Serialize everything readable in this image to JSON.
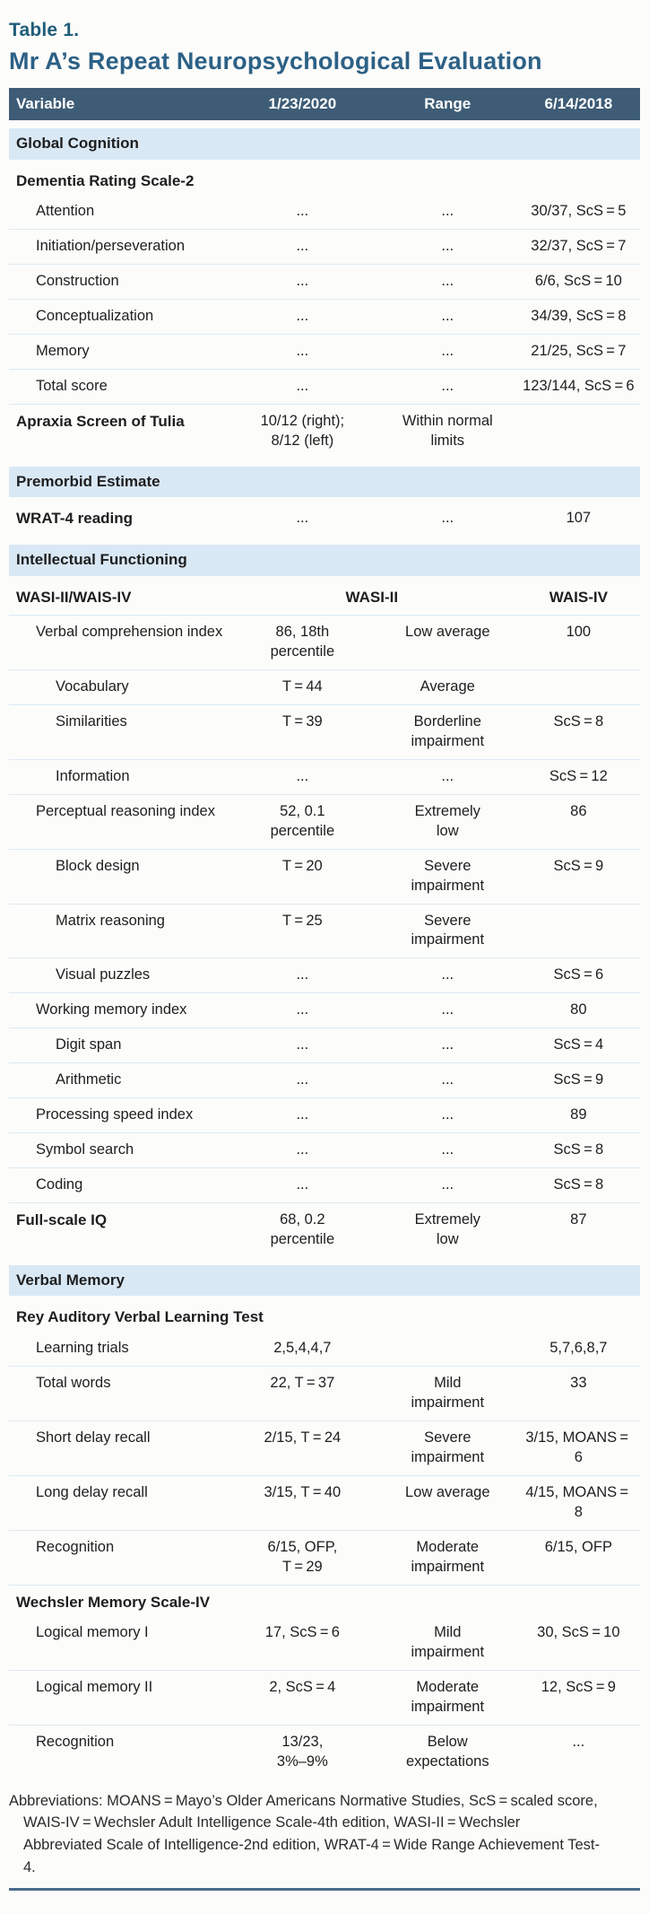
{
  "table_label": "Table 1.",
  "title": "Mr A’s Repeat Neuropsychological Evaluation",
  "columns": [
    "Variable",
    "1/23/2020",
    "Range",
    "6/14/2018"
  ],
  "colors": {
    "header_bg": "#3e5c76",
    "section_band_bg": "#d9e8f5",
    "title_accent": "#2d6186",
    "table_label_accent": "#1f5d78",
    "bottom_rule": "#4a6b8a"
  },
  "rows": [
    {
      "type": "section",
      "label": "Global Cognition"
    },
    {
      "type": "subhead",
      "label": "Dementia Rating Scale-2"
    },
    {
      "type": "data",
      "indent": 1,
      "label": "Attention",
      "v2020": "...",
      "range": "...",
      "v2018": "30/37, ScS = 5"
    },
    {
      "type": "data",
      "indent": 1,
      "label": "Initiation/perseveration",
      "v2020": "...",
      "range": "...",
      "v2018": "32/37, ScS = 7"
    },
    {
      "type": "data",
      "indent": 1,
      "label": "Construction",
      "v2020": "...",
      "range": "...",
      "v2018": "6/6, ScS = 10"
    },
    {
      "type": "data",
      "indent": 1,
      "label": "Conceptualization",
      "v2020": "...",
      "range": "...",
      "v2018": "34/39, ScS = 8"
    },
    {
      "type": "data",
      "indent": 1,
      "label": "Memory",
      "v2020": "...",
      "range": "...",
      "v2018": "21/25, ScS = 7"
    },
    {
      "type": "data",
      "indent": 1,
      "label": "Total score",
      "v2020": "...",
      "range": "...",
      "v2018": "123/144, ScS = 6"
    },
    {
      "type": "data",
      "indent": 0,
      "bold": true,
      "label": "Apraxia Screen of Tulia",
      "v2020": "10/12 (right);\n8/12 (left)",
      "range": "Within normal\nlimits",
      "v2018": ""
    },
    {
      "type": "section",
      "label": "Premorbid Estimate"
    },
    {
      "type": "data",
      "indent": 0,
      "bold": true,
      "label": "WRAT-4 reading",
      "v2020": "...",
      "range": "...",
      "v2018": "107"
    },
    {
      "type": "section",
      "label": "Intellectual Functioning"
    },
    {
      "type": "special",
      "label": "WASI-II/WAIS-IV",
      "span_label": "WASI-II",
      "col4_label": "WAIS-IV"
    },
    {
      "type": "data",
      "indent": 1,
      "label": "Verbal comprehension index",
      "v2020": "86, 18th\npercentile",
      "range": "Low average",
      "v2018": "100"
    },
    {
      "type": "data",
      "indent": 2,
      "label": "Vocabulary",
      "v2020": "T = 44",
      "range": "Average",
      "v2018": ""
    },
    {
      "type": "data",
      "indent": 2,
      "label": "Similarities",
      "v2020": "T = 39",
      "range": "Borderline\nimpairment",
      "v2018": "ScS = 8"
    },
    {
      "type": "data",
      "indent": 2,
      "label": "Information",
      "v2020": "...",
      "range": "...",
      "v2018": "ScS = 12"
    },
    {
      "type": "data",
      "indent": 1,
      "label": "Perceptual reasoning index",
      "v2020": "52, 0.1\npercentile",
      "range": "Extremely\nlow",
      "v2018": "86"
    },
    {
      "type": "data",
      "indent": 2,
      "label": "Block design",
      "v2020": "T = 20",
      "range": "Severe\nimpairment",
      "v2018": "ScS = 9"
    },
    {
      "type": "data",
      "indent": 2,
      "label": "Matrix reasoning",
      "v2020": "T = 25",
      "range": "Severe\nimpairment",
      "v2018": ""
    },
    {
      "type": "data",
      "indent": 2,
      "label": "Visual puzzles",
      "v2020": "...",
      "range": "...",
      "v2018": "ScS = 6"
    },
    {
      "type": "data",
      "indent": 1,
      "label": "Working memory index",
      "v2020": "...",
      "range": "...",
      "v2018": "80"
    },
    {
      "type": "data",
      "indent": 2,
      "label": "Digit span",
      "v2020": "...",
      "range": "...",
      "v2018": "ScS = 4"
    },
    {
      "type": "data",
      "indent": 2,
      "label": "Arithmetic",
      "v2020": "...",
      "range": "...",
      "v2018": "ScS = 9"
    },
    {
      "type": "data",
      "indent": 1,
      "label": "Processing speed index",
      "v2020": "...",
      "range": "...",
      "v2018": "89"
    },
    {
      "type": "data",
      "indent": 1,
      "label": "Symbol search",
      "v2020": "...",
      "range": "...",
      "v2018": "ScS = 8"
    },
    {
      "type": "data",
      "indent": 1,
      "label": "Coding",
      "v2020": "...",
      "range": "...",
      "v2018": "ScS = 8"
    },
    {
      "type": "data",
      "indent": 0,
      "bold": true,
      "label": "Full-scale IQ",
      "v2020": "68, 0.2\npercentile",
      "range": "Extremely\nlow",
      "v2018": "87"
    },
    {
      "type": "section",
      "label": "Verbal Memory"
    },
    {
      "type": "subhead",
      "label": "Rey Auditory Verbal Learning Test"
    },
    {
      "type": "data",
      "indent": 1,
      "label": "Learning trials",
      "v2020": "2,5,4,4,7",
      "range": "",
      "v2018": "5,7,6,8,7"
    },
    {
      "type": "data",
      "indent": 1,
      "label": "Total words",
      "v2020": "22, T = 37",
      "range": "Mild\nimpairment",
      "v2018": "33"
    },
    {
      "type": "data",
      "indent": 1,
      "label": "Short delay recall",
      "v2020": "2/15, T = 24",
      "range": "Severe\nimpairment",
      "v2018": "3/15, MOANS = 6"
    },
    {
      "type": "data",
      "indent": 1,
      "label": "Long delay recall",
      "v2020": "3/15, T = 40",
      "range": "Low average",
      "v2018": "4/15, MOANS = 8"
    },
    {
      "type": "data",
      "indent": 1,
      "label": "Recognition",
      "v2020": "6/15, OFP,\nT = 29",
      "range": "Moderate\nimpairment",
      "v2018": "6/15, OFP"
    },
    {
      "type": "subhead",
      "label": "Wechsler Memory Scale-IV"
    },
    {
      "type": "data",
      "indent": 1,
      "label": "Logical memory I",
      "v2020": "17, ScS = 6",
      "range": "Mild\nimpairment",
      "v2018": "30, ScS = 10"
    },
    {
      "type": "data",
      "indent": 1,
      "label": "Logical memory II",
      "v2020": "2, ScS = 4",
      "range": "Moderate\nimpairment",
      "v2018": "12, ScS = 9"
    },
    {
      "type": "data",
      "indent": 1,
      "label": "Recognition",
      "v2020": "13/23,\n3%–9%",
      "range": "Below\nexpectations",
      "v2018": "..."
    }
  ],
  "footer": "Abbreviations: MOANS = Mayo’s Older Americans Normative Studies, ScS = scaled score, WAIS-IV = Wechsler Adult Intelligence Scale-4th edition, WASI-II = Wechsler Abbreviated Scale of Intelligence-2nd edition, WRAT-4 = Wide Range Achievement Test-4."
}
